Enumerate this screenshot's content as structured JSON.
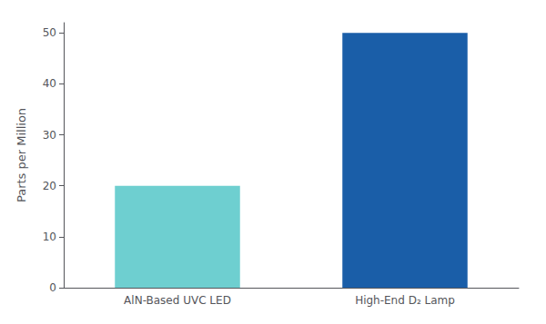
{
  "chart_data": {
    "type": "bar",
    "categories": [
      "AlN-Based UVC LED",
      "High-End D₂ Lamp"
    ],
    "values": [
      20,
      50
    ],
    "colors": [
      "#6ECFD0",
      "#1A5EA8"
    ],
    "ylabel": "Parts per Million",
    "ylim": [
      0,
      52
    ],
    "yticks": [
      0,
      10,
      20,
      30,
      40,
      50
    ],
    "grid": false
  }
}
